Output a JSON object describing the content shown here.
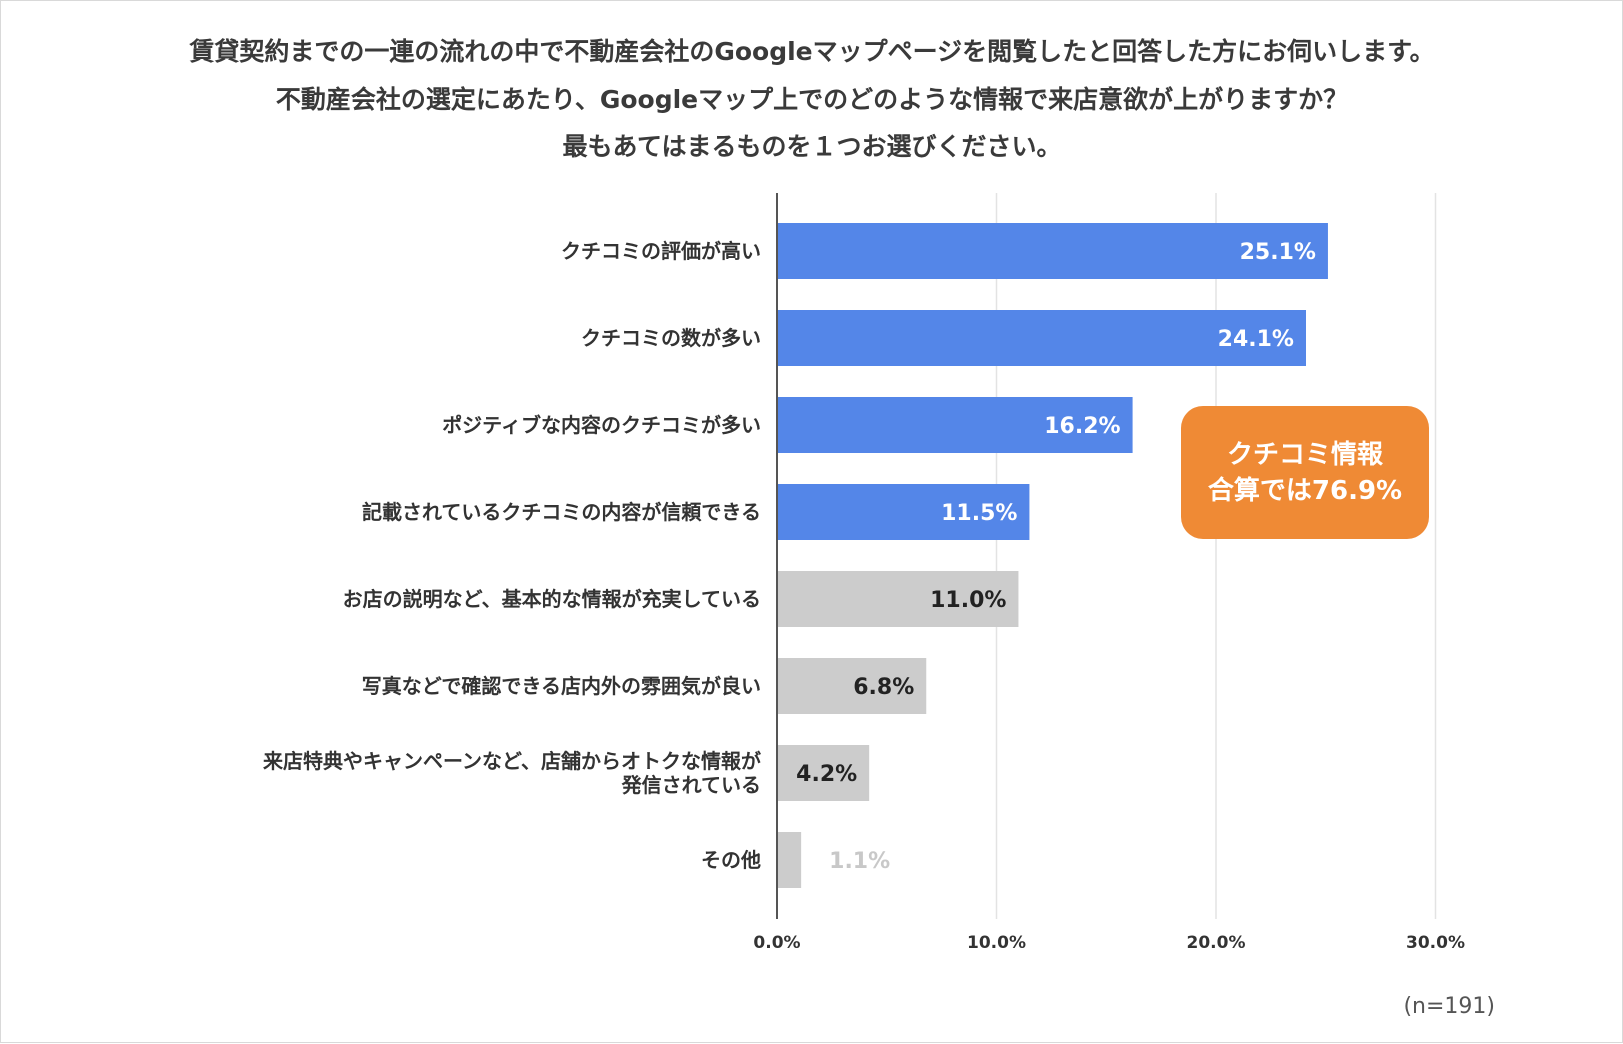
{
  "chart_data": {
    "type": "bar",
    "orientation": "horizontal",
    "title_lines": [
      "賃貸契約までの一連の流れの中で不動産会社のGoogleマップページを閲覧したと回答した方にお伺いします。",
      "不動産会社の選定にあたり、Googleマップ上でのどのような情報で来店意欲が上がりますか？",
      "最もあてはまるものを１つお選びください。"
    ],
    "categories": [
      [
        "クチコミの評価が高い"
      ],
      [
        "クチコミの数が多い"
      ],
      [
        "ポジティブな内容のクチコミが多い"
      ],
      [
        "記載されているクチコミの内容が信頼できる"
      ],
      [
        "お店の説明など、基本的な情報が充実している"
      ],
      [
        "写真などで確認できる店内外の雰囲気が良い"
      ],
      [
        "来店特典やキャンペーンなど、店舗からオトクな情報が",
        "発信されている"
      ],
      [
        "その他"
      ]
    ],
    "values": [
      25.1,
      24.1,
      16.2,
      11.5,
      11.0,
      6.8,
      4.2,
      1.1
    ],
    "value_labels": [
      "25.1%",
      "24.1%",
      "16.2%",
      "11.5%",
      "11.0%",
      "6.8%",
      "4.2%",
      "1.1%"
    ],
    "highlighted": [
      true,
      true,
      true,
      true,
      false,
      false,
      false,
      false
    ],
    "xlim": [
      0,
      30
    ],
    "xticks": [
      0,
      10,
      20,
      30
    ],
    "xtick_labels": [
      "0.0%",
      "10.0%",
      "20.0%",
      "30.0%"
    ],
    "grid": true,
    "xlabel": "",
    "ylabel": "",
    "annotation": {
      "lines": [
        "クチコミ情報",
        "合算では76.9%"
      ]
    },
    "sample_note": "(n=191)"
  },
  "colors": {
    "highlight_bar": "#5486e8",
    "other_bar": "#cccccc",
    "highlight_label": "#ffffff",
    "other_label": "#222222",
    "faint_label": "#c8c8c8",
    "callout_bg": "#ef8a35",
    "grid": "#e3e3e3",
    "axis": "#555555"
  }
}
